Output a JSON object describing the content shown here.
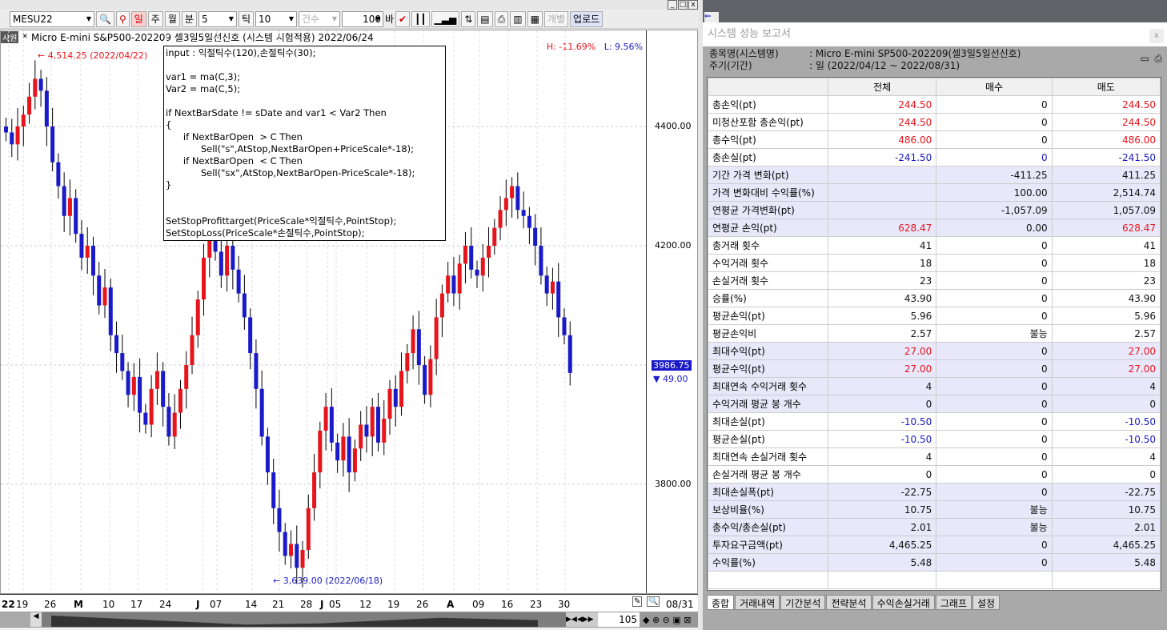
{
  "toolbar": {
    "symbol": "MESU22",
    "day": "일",
    "week": "주",
    "month": "월",
    "minute": "분",
    "minute_val": "5",
    "tick": "틱",
    "tick_val": "10",
    "count": "건수",
    "count_val": "100",
    "bar": "바",
    "individual": "개별",
    "upload": "업로드"
  },
  "chart": {
    "tag": "사원",
    "title": "Micro E-mini S&P500-202209 셀3일5일선신호 (시스템 시험적용) 2022/06/24",
    "high_pct": "H: -11.69%",
    "low_pct": "L: 9.56%",
    "high_note": "4,514.25 (2022/04/22)",
    "low_note": "3,639.00 (2022/06/18)",
    "current_price": "3986.75",
    "current_sub": "49.00",
    "y_labels": [
      "4400.00",
      "4200.00",
      "3800.00"
    ],
    "date_labels": [
      "22",
      "19",
      "26",
      "M",
      "10",
      "17",
      "24",
      "J",
      "07",
      "14",
      "21",
      "28",
      "J",
      "05",
      "12",
      "19",
      "26",
      "A",
      "09",
      "16",
      "23",
      "30"
    ],
    "end_date": "08/31",
    "scroll_val": "105",
    "code": "input : 익절틱수(120),손절틱수(30);\n\nvar1 = ma(C,3);\nVar2 = ma(C,5);\n\nif NextBarSdate != sDate and var1 < Var2 Then\n{\n      if NextBarOpen  > C Then\n            Sell(\"s\",AtStop,NextBarOpen+PriceScale*-18);\n      if NextBarOpen  < C Then\n            Sell(\"sx\",AtStop,NextBarOpen-PriceScale*-18);\n}\n\n\nSetStopProfittarget(PriceScale*익절틱수,PointStop);\nSetStopLoss(PriceScale*손절틱수,PointStop);",
    "up_color": "#e8141c",
    "down_color": "#1a1ac8"
  },
  "chart_data": {
    "type": "candlestick",
    "closes": [
      4390,
      4370,
      4400,
      4420,
      4450,
      4480,
      4460,
      4400,
      4340,
      4300,
      4250,
      4280,
      4220,
      4180,
      4200,
      4150,
      4100,
      4130,
      4050,
      4020,
      3990,
      3950,
      3980,
      3920,
      3900,
      3960,
      3990,
      3930,
      3880,
      3920,
      3960,
      4000,
      4050,
      4110,
      4180,
      4240,
      4190,
      4150,
      4200,
      4160,
      4120,
      4080,
      4020,
      3960,
      3880,
      3820,
      3760,
      3720,
      3680,
      3700,
      3660,
      3690,
      3760,
      3820,
      3890,
      3930,
      3870,
      3840,
      3880,
      3820,
      3860,
      3900,
      3880,
      3930,
      3870,
      3910,
      3960,
      3930,
      3990,
      4020,
      4060,
      4000,
      3950,
      4010,
      4080,
      4120,
      4150,
      4120,
      4170,
      4200,
      4160,
      4150,
      4180,
      4200,
      4230,
      4260,
      4280,
      4300,
      4260,
      4250,
      4230,
      4200,
      4150,
      4120,
      4140,
      4080,
      4050,
      3986.75
    ],
    "ylim": [
      3620,
      4540
    ]
  },
  "report": {
    "title": "시스템 성능 보고서",
    "name_label": "종목명(시스템명)",
    "name_val": ":  Micro E-mini SP500-202209(셀3일5일선신호)",
    "period_label": "주기(기간)",
    "period_val": ":  일 (2022/04/12 ~ 2022/08/31)",
    "headers": [
      "",
      "전체",
      "매수",
      "매도"
    ],
    "rows": [
      {
        "l": "총손익(pt)",
        "v": [
          "244.50",
          "0",
          "244.50"
        ],
        "c": [
          "r",
          "",
          "r"
        ],
        "s": 0
      },
      {
        "l": "미청산포함 총손익(pt)",
        "v": [
          "244.50",
          "0",
          "244.50"
        ],
        "c": [
          "r",
          "",
          "r"
        ],
        "s": 0
      },
      {
        "l": "총수익(pt)",
        "v": [
          "486.00",
          "0",
          "486.00"
        ],
        "c": [
          "r",
          "",
          "r"
        ],
        "s": 0
      },
      {
        "l": "총손실(pt)",
        "v": [
          "-241.50",
          "0",
          "-241.50"
        ],
        "c": [
          "b",
          "b",
          "b"
        ],
        "s": 0
      },
      {
        "l": "기간 가격 변화(pt)",
        "v": [
          "",
          "-411.25",
          "411.25"
        ],
        "c": [
          "",
          "",
          ""
        ],
        "s": 1
      },
      {
        "l": "가격 변화대비 수익률(%)",
        "v": [
          "",
          "100.00",
          "2,514.74"
        ],
        "c": [
          "",
          "",
          ""
        ],
        "s": 1
      },
      {
        "l": "연평균 가격변화(pt)",
        "v": [
          "",
          "-1,057.09",
          "1,057.09"
        ],
        "c": [
          "",
          "",
          ""
        ],
        "s": 1
      },
      {
        "l": "연평균 손익(pt)",
        "v": [
          "628.47",
          "0.00",
          "628.47"
        ],
        "c": [
          "r",
          "",
          "r"
        ],
        "s": 1
      },
      {
        "l": "총거래 횟수",
        "v": [
          "41",
          "0",
          "41"
        ],
        "c": [
          "",
          "",
          ""
        ],
        "s": 0
      },
      {
        "l": "수익거래 횟수",
        "v": [
          "18",
          "0",
          "18"
        ],
        "c": [
          "",
          "",
          ""
        ],
        "s": 0
      },
      {
        "l": "손실거래 횟수",
        "v": [
          "23",
          "0",
          "23"
        ],
        "c": [
          "",
          "",
          ""
        ],
        "s": 0
      },
      {
        "l": "승률(%)",
        "v": [
          "43.90",
          "0",
          "43.90"
        ],
        "c": [
          "",
          "",
          ""
        ],
        "s": 0
      },
      {
        "l": "평균손익(pt)",
        "v": [
          "5.96",
          "0",
          "5.96"
        ],
        "c": [
          "",
          "",
          ""
        ],
        "s": 0
      },
      {
        "l": "평균손익비",
        "v": [
          "2.57",
          "불능",
          "2.57"
        ],
        "c": [
          "",
          "",
          ""
        ],
        "s": 0
      },
      {
        "l": "최대수익(pt)",
        "v": [
          "27.00",
          "0",
          "27.00"
        ],
        "c": [
          "r",
          "",
          "r"
        ],
        "s": 1
      },
      {
        "l": "평균수익(pt)",
        "v": [
          "27.00",
          "0",
          "27.00"
        ],
        "c": [
          "r",
          "",
          "r"
        ],
        "s": 1
      },
      {
        "l": "최대연속 수익거래 횟수",
        "v": [
          "4",
          "0",
          "4"
        ],
        "c": [
          "",
          "",
          ""
        ],
        "s": 1
      },
      {
        "l": "수익거래 평균 봉 개수",
        "v": [
          "0",
          "0",
          "0"
        ],
        "c": [
          "",
          "",
          ""
        ],
        "s": 1
      },
      {
        "l": "최대손실(pt)",
        "v": [
          "-10.50",
          "0",
          "-10.50"
        ],
        "c": [
          "b",
          "",
          "b"
        ],
        "s": 0
      },
      {
        "l": "평균손실(pt)",
        "v": [
          "-10.50",
          "0",
          "-10.50"
        ],
        "c": [
          "b",
          "",
          "b"
        ],
        "s": 0
      },
      {
        "l": "최대연속 손실거래 횟수",
        "v": [
          "4",
          "0",
          "4"
        ],
        "c": [
          "",
          "",
          ""
        ],
        "s": 0
      },
      {
        "l": "손실거래 평균 봉 개수",
        "v": [
          "0",
          "0",
          "0"
        ],
        "c": [
          "",
          "",
          ""
        ],
        "s": 0
      },
      {
        "l": "최대손실폭(pt)",
        "v": [
          "-22.75",
          "0",
          "-22.75"
        ],
        "c": [
          "",
          "",
          ""
        ],
        "s": 1
      },
      {
        "l": "보상비율(%)",
        "v": [
          "10.75",
          "불능",
          "10.75"
        ],
        "c": [
          "",
          "",
          ""
        ],
        "s": 1
      },
      {
        "l": "총수익/총손실(pt)",
        "v": [
          "2.01",
          "불능",
          "2.01"
        ],
        "c": [
          "",
          "",
          ""
        ],
        "s": 1
      },
      {
        "l": "투자요구금액(pt)",
        "v": [
          "4,465.25",
          "0",
          "4,465.25"
        ],
        "c": [
          "",
          "",
          ""
        ],
        "s": 1
      },
      {
        "l": "수익률(%)",
        "v": [
          "5.48",
          "0",
          "5.48"
        ],
        "c": [
          "",
          "",
          ""
        ],
        "s": 1
      }
    ],
    "tabs": [
      "종합",
      "거래내역",
      "기간분석",
      "전략분석",
      "수익손실거래",
      "그래프",
      "설정"
    ]
  }
}
